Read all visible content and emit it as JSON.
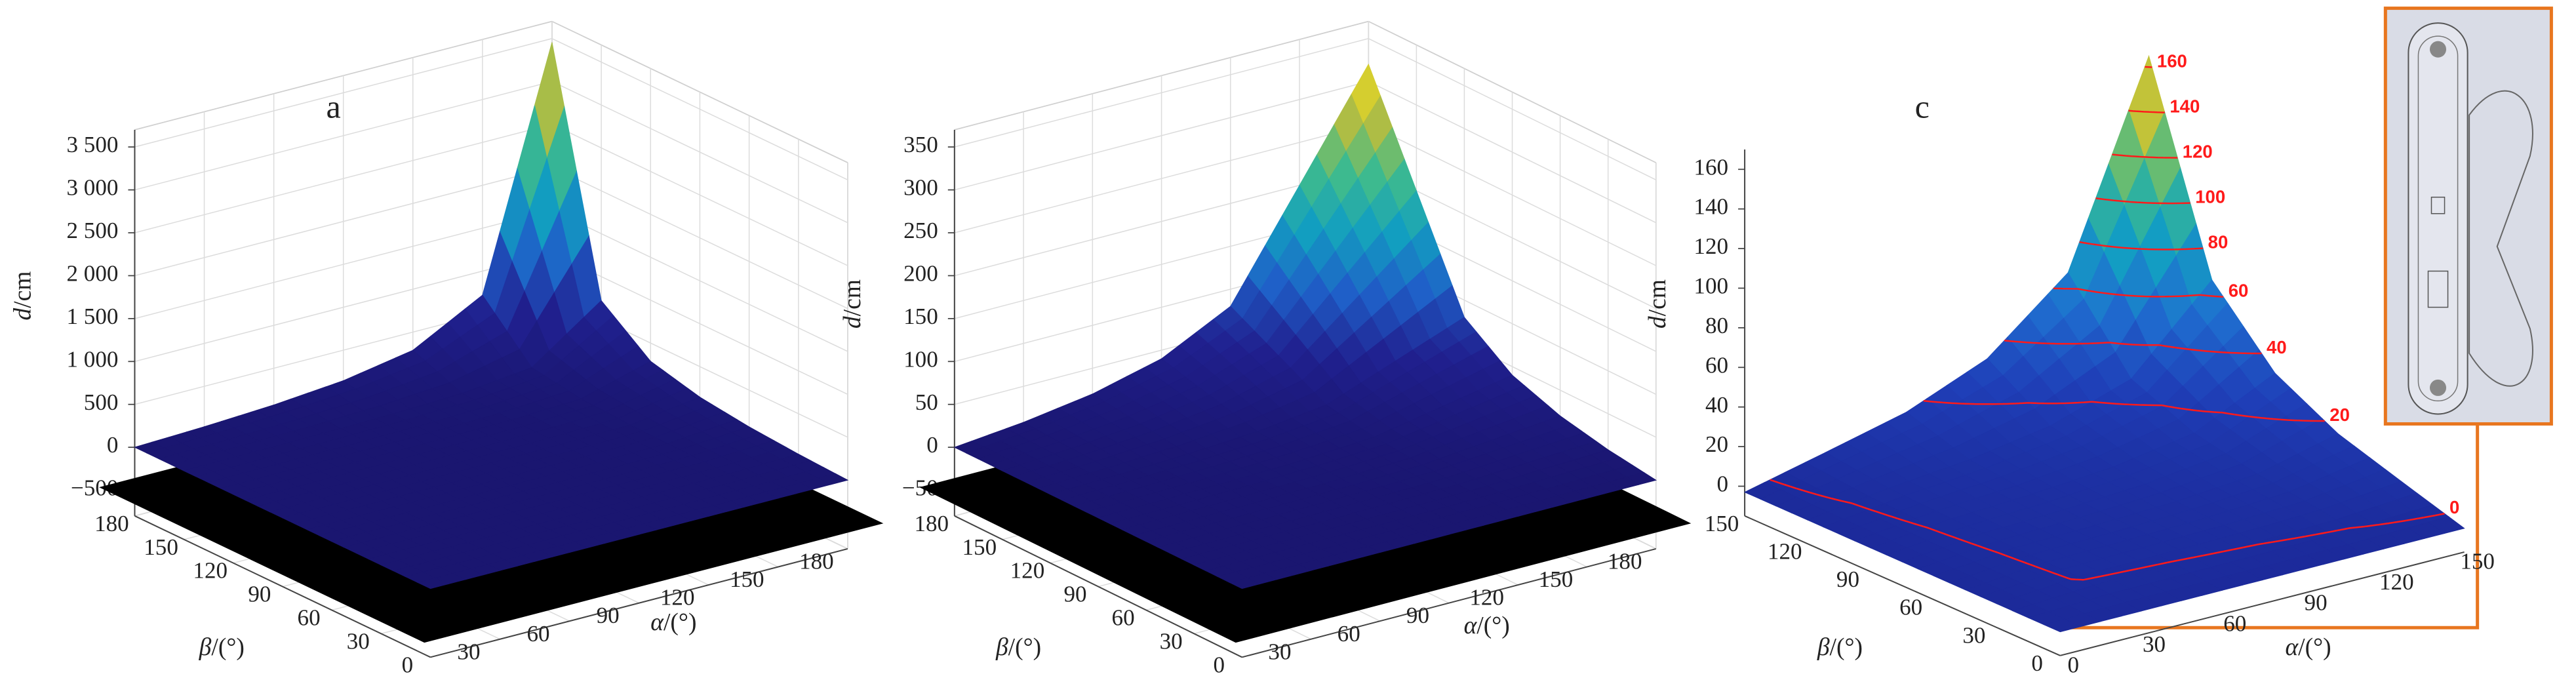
{
  "chart_data": [
    {
      "type": "surface",
      "title": "a",
      "xlabel": "α/(°)",
      "ylabel": "β/(°)",
      "zlabel": "d/cm",
      "x": [
        0,
        30,
        60,
        90,
        120,
        150,
        180
      ],
      "y": [
        0,
        30,
        60,
        90,
        120,
        150,
        180
      ],
      "z": [
        [
          0,
          0,
          0,
          0,
          0,
          0,
          0
        ],
        [
          0,
          0.24,
          0.6,
          1.2,
          2.4,
          6,
          29
        ],
        [
          0,
          0.6,
          1.5,
          3,
          6,
          15,
          72
        ],
        [
          0,
          1.2,
          3,
          6,
          12,
          30,
          144
        ],
        [
          0,
          2.4,
          6,
          12,
          24,
          60,
          288
        ],
        [
          0,
          6,
          15,
          30,
          60,
          150,
          720
        ],
        [
          0,
          29,
          72,
          144,
          288,
          720,
          3456
        ]
      ],
      "xlim": [
        0,
        180
      ],
      "ylim": [
        0,
        180
      ],
      "zlim": [
        -800,
        3700
      ],
      "xticks": [
        30,
        60,
        90,
        120,
        150,
        180
      ],
      "yticks": [
        0,
        30,
        60,
        90,
        120,
        150,
        180
      ],
      "zticks": [
        {
          "value": -500,
          "label": "−500"
        },
        0,
        500,
        {
          "value": 1000,
          "label": "1 000"
        },
        {
          "value": 1500,
          "label": "1 500"
        },
        {
          "value": 2000,
          "label": "2 000"
        },
        {
          "value": 2500,
          "label": "2 500"
        },
        {
          "value": 3000,
          "label": "3 000"
        },
        {
          "value": 3500,
          "label": "3 500"
        }
      ],
      "grid": true,
      "floor_color": "#000000",
      "colormap": [
        "#1a1670",
        "#20208f",
        "#1f5fc8",
        "#129fc0",
        "#3fbb8c",
        "#b8bd3e",
        "#f8e31c"
      ]
    },
    {
      "type": "surface",
      "xlabel": "α/(°)",
      "ylabel": "β/(°)",
      "zlabel": "d/cm",
      "x": [
        0,
        30,
        60,
        90,
        120,
        150,
        180
      ],
      "y": [
        0,
        30,
        60,
        90,
        120,
        150,
        180
      ],
      "z": [
        [
          0,
          0,
          0,
          0,
          0,
          0,
          0
        ],
        [
          0,
          0.2,
          0.5,
          1,
          2,
          5,
          8
        ],
        [
          0,
          0.5,
          1.25,
          2.5,
          5,
          12.5,
          20
        ],
        [
          0,
          1,
          2.5,
          5,
          10,
          25,
          40
        ],
        [
          0,
          2,
          5,
          10,
          20,
          50,
          80
        ],
        [
          0,
          5,
          12.5,
          25,
          50,
          125,
          200
        ],
        [
          0,
          8,
          20,
          40,
          80,
          200,
          320
        ]
      ],
      "xlim": [
        0,
        180
      ],
      "ylim": [
        0,
        180
      ],
      "zlim": [
        -80,
        370
      ],
      "xticks": [
        30,
        60,
        90,
        120,
        150,
        180
      ],
      "yticks": [
        0,
        30,
        60,
        90,
        120,
        150,
        180
      ],
      "zticks": [
        {
          "value": -50,
          "label": "−50"
        },
        0,
        50,
        100,
        150,
        200,
        250,
        300,
        350
      ],
      "grid": true,
      "floor_color": "#000000",
      "colormap": [
        "#1a1670",
        "#20208f",
        "#1f5fc8",
        "#129fc0",
        "#3fbb8c",
        "#b8bd3e",
        "#f8e31c"
      ]
    },
    {
      "type": "surface",
      "title": "c",
      "xlabel": "α/(°)",
      "ylabel": "β/(°)",
      "zlabel": "d/cm",
      "x": [
        0,
        30,
        60,
        90,
        120,
        150
      ],
      "y": [
        0,
        30,
        60,
        90,
        120,
        150
      ],
      "z": [
        [
          -3,
          -3,
          -3,
          -3,
          -3,
          -3
        ],
        [
          -3,
          0.3,
          0.7,
          1.3,
          2.6,
          6.6
        ],
        [
          -3,
          0.7,
          1.7,
          3.3,
          6.6,
          16.5
        ],
        [
          -3,
          1.3,
          3.3,
          6.6,
          13.2,
          33
        ],
        [
          -3,
          2.6,
          6.6,
          13.2,
          26.4,
          66
        ],
        [
          -3,
          6.6,
          16.5,
          33,
          66,
          165
        ]
      ],
      "xlim": [
        0,
        150
      ],
      "ylim": [
        0,
        150
      ],
      "zlim": [
        -15,
        170
      ],
      "xticks": [
        0,
        30,
        60,
        90,
        120,
        150
      ],
      "yticks": [
        0,
        30,
        60,
        90,
        120,
        150
      ],
      "zticks": [
        0,
        20,
        40,
        60,
        80,
        100,
        120,
        140,
        160
      ],
      "grid": false,
      "contour_levels": [
        0,
        20,
        40,
        60,
        80,
        100,
        120,
        140,
        160
      ],
      "contour_color": "#ff1a1a",
      "colormap": [
        "#1c2a9a",
        "#1f3fb8",
        "#1f6fd0",
        "#139fc2",
        "#3fbb8c",
        "#b8bd3e",
        "#f8e31c"
      ]
    }
  ]
}
